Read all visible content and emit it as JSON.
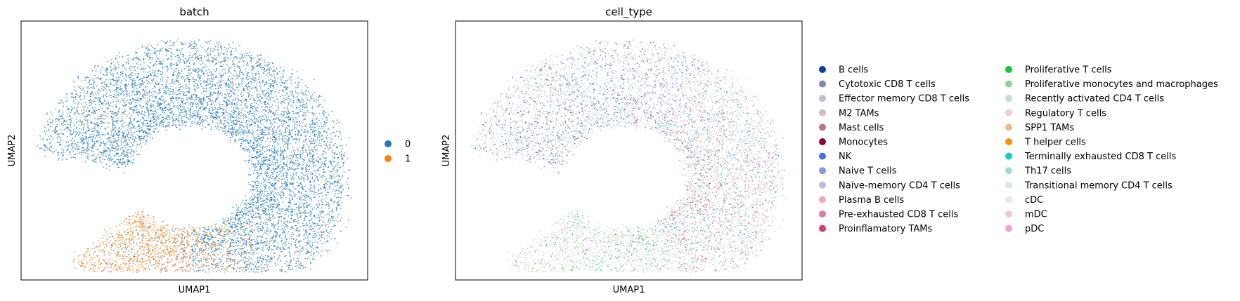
{
  "chart_data": [
    {
      "type": "scatter",
      "title": "batch",
      "xlabel": "UMAP1",
      "ylabel": "UMAP2",
      "grid": false,
      "legend_placement": "right",
      "series": [
        {
          "name": "0",
          "color": "#1f77b4"
        },
        {
          "name": "1",
          "color": "#ff7f0e"
        }
      ]
    },
    {
      "type": "scatter",
      "title": "cell_type",
      "xlabel": "UMAP1",
      "ylabel": "UMAP2",
      "grid": false,
      "legend_placement": "right",
      "series": [
        {
          "name": "B cells",
          "color": "#023fa5"
        },
        {
          "name": "Cytotoxic CD8 T cells",
          "color": "#7d87b9"
        },
        {
          "name": "Effector memory CD8 T cells",
          "color": "#bec1d4"
        },
        {
          "name": "M2 TAMs",
          "color": "#d6bcc0"
        },
        {
          "name": "Mast cells",
          "color": "#bb7784"
        },
        {
          "name": "Monocytes",
          "color": "#8e063b"
        },
        {
          "name": "NK",
          "color": "#4a6fe3"
        },
        {
          "name": "Naive T cells",
          "color": "#8595e1"
        },
        {
          "name": "Naive-memory CD4 T cells",
          "color": "#b5bbe3"
        },
        {
          "name": "Plasma B cells",
          "color": "#e6afb9"
        },
        {
          "name": "Pre-exhausted CD8 T cells",
          "color": "#e07b91"
        },
        {
          "name": "Proinflamatory TAMs",
          "color": "#d33f6a"
        },
        {
          "name": "Proliferative T cells",
          "color": "#11c638"
        },
        {
          "name": "Proliferative monocytes and macrophages",
          "color": "#8dd593"
        },
        {
          "name": "Recently activated CD4 T cells",
          "color": "#c6dec7"
        },
        {
          "name": "Regulatory T cells",
          "color": "#ead3c6"
        },
        {
          "name": "SPP1 TAMs",
          "color": "#f0b98d"
        },
        {
          "name": "T helper cells",
          "color": "#ef9708"
        },
        {
          "name": "Terminally exhausted CD8 T cells",
          "color": "#0fcfc0"
        },
        {
          "name": "Th17 cells",
          "color": "#9cded6"
        },
        {
          "name": "Transitional memory CD4 T cells",
          "color": "#d5eae7"
        },
        {
          "name": "cDC",
          "color": "#f3e1eb"
        },
        {
          "name": "mDC",
          "color": "#f6c4e1"
        },
        {
          "name": "pDC",
          "color": "#f79cd4"
        }
      ]
    }
  ]
}
